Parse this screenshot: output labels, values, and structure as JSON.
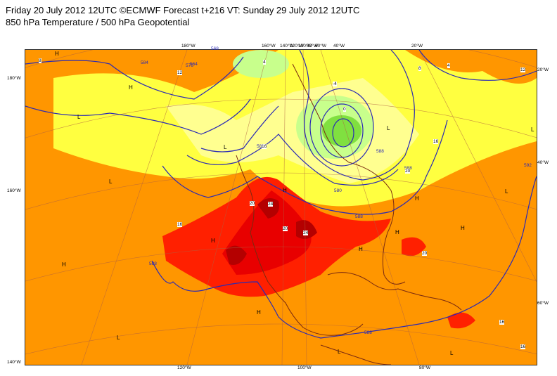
{
  "header": {
    "line1": "Friday 20 July 2012 12UTC ©ECMWF Forecast t+216 VT: Sunday 29 July 2012 12UTC",
    "line2": "850 hPa Temperature / 500 hPa Geopotential"
  },
  "map": {
    "colors": {
      "orange": "#ffa500",
      "dark_orange": "#ff7f00",
      "red_orange": "#ff4000",
      "red": "#ff0000",
      "dark_red": "#c80000",
      "yellow": "#ffff00",
      "pale_yellow": "#ffff80",
      "light_green": "#c0ff80",
      "green": "#80e040",
      "contour": "#2a2ab4",
      "coast": "#7a2a10"
    },
    "longitude_labels_top": [
      "180°W",
      "160°W",
      "140°W",
      "120°W",
      "100°W",
      "80°W",
      "60°W",
      "40°W",
      "20°W"
    ],
    "longitude_labels_bottom": [
      "120°W",
      "100°W",
      "80°W"
    ],
    "latitude_labels_left": [
      "180°W",
      "160°W",
      "140°W"
    ],
    "latitude_labels_right": [
      "20°W",
      "40°W",
      "60°W"
    ],
    "contour_labels": [
      "584",
      "588",
      "576",
      "568",
      "564",
      "580",
      "588",
      "592",
      "588",
      "588",
      "588",
      "580"
    ],
    "temp_labels": [
      "16",
      "16",
      "20",
      "24",
      "20",
      "24",
      "20",
      "16",
      "16",
      "12",
      "8",
      "4",
      "0",
      "-4",
      "4",
      "12",
      "8",
      "16",
      "20"
    ],
    "pressure_marks": [
      "H",
      "H",
      "L",
      "L",
      "H",
      "L",
      "H",
      "L",
      "L",
      "H",
      "H",
      "L",
      "H",
      "H",
      "L",
      "L",
      "H",
      "L",
      "H"
    ]
  }
}
